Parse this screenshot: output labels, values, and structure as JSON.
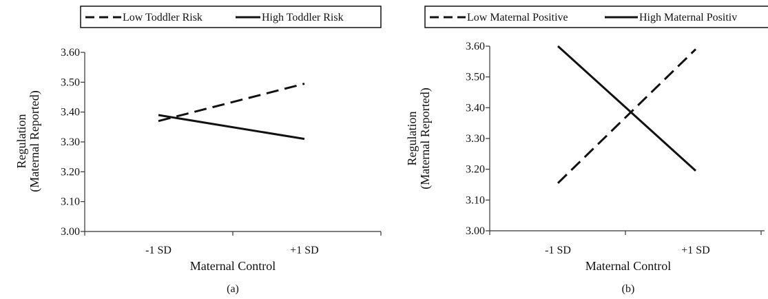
{
  "chart_data": [
    {
      "type": "line",
      "categories": [
        "-1 SD",
        "+1 SD"
      ],
      "series": [
        {
          "name": "Low Toddler Risk",
          "values": [
            3.37,
            3.495
          ],
          "style": "dashed"
        },
        {
          "name": "High Toddler Risk",
          "values": [
            3.39,
            3.31
          ],
          "style": "solid"
        }
      ],
      "xlabel": "Maternal Control",
      "ylabel": [
        "Regulation",
        "(Maternal Reported)"
      ],
      "ylim": [
        3.0,
        3.6
      ],
      "yticks": [
        "3.00",
        "3.10",
        "3.20",
        "3.30",
        "3.40",
        "3.50",
        "3.60"
      ],
      "caption": "(a)",
      "legend_position": "top",
      "grid": false
    },
    {
      "type": "line",
      "categories": [
        "-1 SD",
        "+1 SD"
      ],
      "series": [
        {
          "name": "Low Maternal Positive",
          "values": [
            3.155,
            3.59
          ],
          "style": "dashed"
        },
        {
          "name": "High Maternal Positiv",
          "values": [
            3.6,
            3.195
          ],
          "style": "solid"
        }
      ],
      "xlabel": "Maternal Control",
      "ylabel": [
        "Regulation",
        "(Maternal Reported)"
      ],
      "ylim": [
        3.0,
        3.6
      ],
      "yticks": [
        "3.00",
        "3.10",
        "3.20",
        "3.30",
        "3.40",
        "3.50",
        "3.60"
      ],
      "caption": "(b)",
      "legend_position": "top",
      "grid": false
    }
  ],
  "colors": {
    "line": "#111111",
    "axis": "#333333"
  }
}
